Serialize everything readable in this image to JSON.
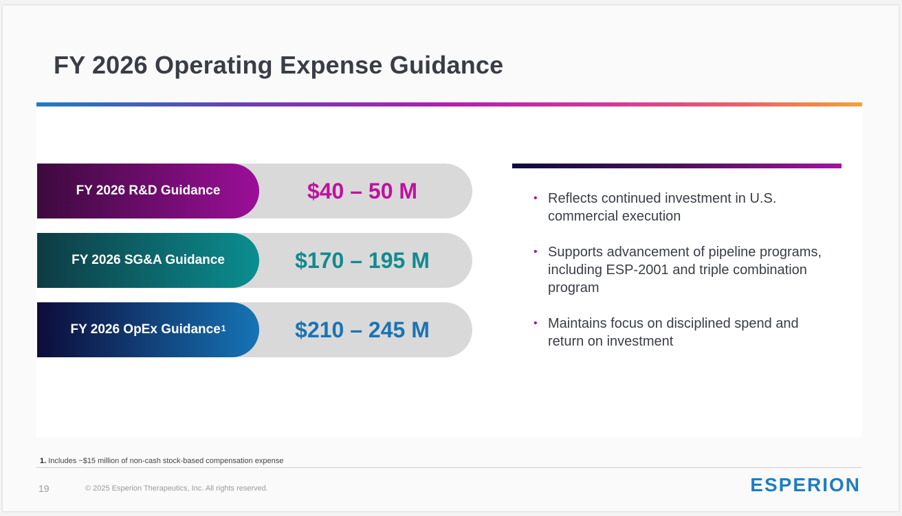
{
  "slide": {
    "title": "FY 2026 Operating Expense Guidance",
    "page_number": "19",
    "copyright": "© 2025 Esperion Therapeutics, Inc. All rights reserved.",
    "logo_text": "ESPERION"
  },
  "guidance": [
    {
      "label": "FY 2026 R&D Guidance",
      "superscript": "",
      "value": "$40 – 50 M",
      "value_color": "#c0119f"
    },
    {
      "label": "FY 2026 SG&A Guidance",
      "superscript": "",
      "value": "$170 – 195 M",
      "value_color": "#128a8e"
    },
    {
      "label": "FY 2026 OpEx Guidance",
      "superscript": "1",
      "value": "$210 – 245 M",
      "value_color": "#1a73b3"
    }
  ],
  "bullets": [
    "Reflects continued investment in U.S. commercial execution",
    "Supports advancement of pipeline programs, including ESP-2001 and triple combination program",
    "Maintains focus on disciplined spend and return on investment"
  ],
  "footnote": {
    "marker": "1.",
    "text": "Includes ~$15 million of non-cash stock-based compensation expense"
  },
  "colors": {
    "brand_blue": "#1f7dc0",
    "bullet_dot": "#b0109c",
    "title_text": "#3a3d45"
  }
}
